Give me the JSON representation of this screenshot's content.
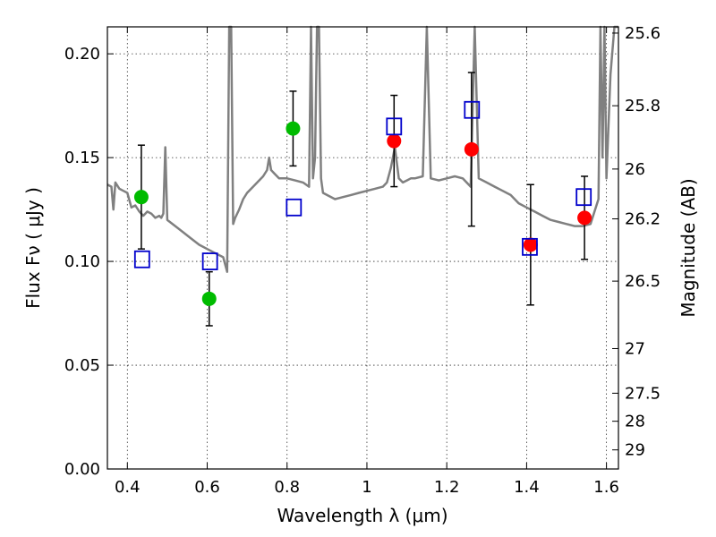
{
  "chart_data": {
    "type": "scatter",
    "xlabel": "Wavelength  λ (μm)",
    "ylabel": "Flux  Fν  ( μJy )",
    "y2label": "Magnitude (AB)",
    "xlim": [
      0.35,
      1.63
    ],
    "ylim": [
      0.0,
      0.213
    ],
    "grid": true,
    "x_ticks": [
      0.4,
      0.6,
      0.8,
      1.0,
      1.2,
      1.4,
      1.6
    ],
    "x_tick_labels": [
      "0.4",
      "0.6",
      "0.8",
      "1",
      "1.2",
      "1.4",
      "1.6"
    ],
    "y_ticks": [
      0.0,
      0.05,
      0.1,
      0.15,
      0.2
    ],
    "y_tick_labels": [
      "0.00",
      "0.05",
      "0.10",
      "0.15",
      "0.20"
    ],
    "y2_ticks": [
      {
        "label": "25.6",
        "flux": 0.21
      },
      {
        "label": "25.8",
        "flux": 0.175
      },
      {
        "label": "26",
        "flux": 0.1445
      },
      {
        "label": "26.2",
        "flux": 0.1205
      },
      {
        "label": "26.5",
        "flux": 0.0905
      },
      {
        "label": "27",
        "flux": 0.058
      },
      {
        "label": "27.5",
        "flux": 0.0365
      },
      {
        "label": "28",
        "flux": 0.023
      },
      {
        "label": "29",
        "flux": 0.0092
      }
    ],
    "series": [
      {
        "marker": "circle",
        "color": "#00bb00",
        "x": [
          0.435,
          0.605,
          0.815
        ],
        "y": [
          0.131,
          0.082,
          0.164
        ],
        "err": [
          0.025,
          0.013,
          0.018
        ]
      },
      {
        "marker": "circle",
        "color": "#ff0000",
        "x": [
          1.068,
          1.262,
          1.41,
          1.545
        ],
        "y": [
          0.158,
          0.154,
          0.108,
          0.121
        ],
        "err": [
          0.022,
          0.037,
          0.029,
          0.02
        ]
      },
      {
        "marker": "open-square",
        "color": "#0000cc",
        "x": [
          0.437,
          0.607,
          0.817,
          1.068,
          1.263,
          1.408,
          1.543
        ],
        "y": [
          0.101,
          0.1,
          0.126,
          0.165,
          0.173,
          0.107,
          0.131
        ]
      },
      {
        "marker": "line",
        "color": "#808080",
        "x": [
          0.35,
          0.36,
          0.365,
          0.37,
          0.38,
          0.39,
          0.4,
          0.41,
          0.42,
          0.43,
          0.44,
          0.45,
          0.46,
          0.47,
          0.48,
          0.485,
          0.49,
          0.495,
          0.5,
          0.52,
          0.54,
          0.56,
          0.58,
          0.6,
          0.62,
          0.64,
          0.65,
          0.655,
          0.66,
          0.665,
          0.67,
          0.68,
          0.69,
          0.7,
          0.72,
          0.74,
          0.75,
          0.755,
          0.76,
          0.77,
          0.78,
          0.79,
          0.8,
          0.82,
          0.84,
          0.855,
          0.86,
          0.865,
          0.87,
          0.875,
          0.88,
          0.885,
          0.89,
          0.9,
          0.92,
          0.94,
          0.96,
          0.98,
          1.0,
          1.02,
          1.04,
          1.05,
          1.06,
          1.07,
          1.08,
          1.09,
          1.1,
          1.11,
          1.12,
          1.14,
          1.15,
          1.16,
          1.18,
          1.2,
          1.22,
          1.24,
          1.26,
          1.27,
          1.28,
          1.3,
          1.32,
          1.34,
          1.36,
          1.38,
          1.4,
          1.42,
          1.44,
          1.46,
          1.48,
          1.5,
          1.52,
          1.54,
          1.56,
          1.58,
          1.585,
          1.59,
          1.595,
          1.6,
          1.61,
          1.62,
          1.63
        ],
        "y": [
          0.137,
          0.136,
          0.125,
          0.138,
          0.135,
          0.134,
          0.133,
          0.126,
          0.127,
          0.124,
          0.122,
          0.124,
          0.123,
          0.121,
          0.122,
          0.121,
          0.123,
          0.155,
          0.12,
          0.117,
          0.114,
          0.111,
          0.108,
          0.106,
          0.104,
          0.102,
          0.095,
          0.213,
          0.213,
          0.118,
          0.121,
          0.125,
          0.13,
          0.133,
          0.137,
          0.141,
          0.144,
          0.15,
          0.144,
          0.142,
          0.14,
          0.14,
          0.14,
          0.139,
          0.138,
          0.136,
          0.213,
          0.14,
          0.15,
          0.213,
          0.213,
          0.14,
          0.133,
          0.132,
          0.13,
          0.131,
          0.132,
          0.133,
          0.134,
          0.135,
          0.136,
          0.138,
          0.145,
          0.155,
          0.14,
          0.138,
          0.139,
          0.14,
          0.14,
          0.141,
          0.213,
          0.14,
          0.139,
          0.14,
          0.141,
          0.14,
          0.136,
          0.213,
          0.14,
          0.138,
          0.136,
          0.134,
          0.132,
          0.128,
          0.126,
          0.124,
          0.122,
          0.12,
          0.119,
          0.118,
          0.117,
          0.117,
          0.118,
          0.13,
          0.213,
          0.15,
          0.213,
          0.14,
          0.19,
          0.213,
          0.213
        ]
      }
    ]
  }
}
